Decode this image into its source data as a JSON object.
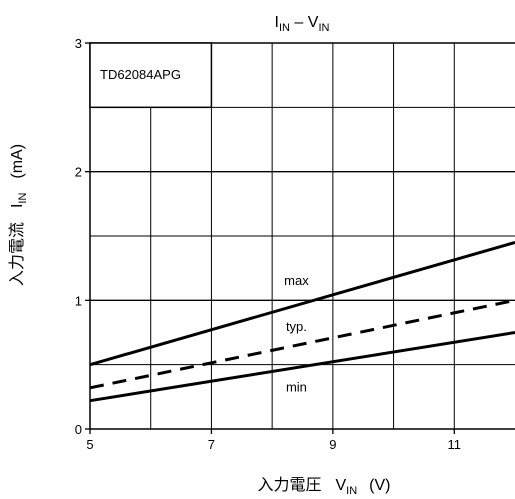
{
  "chart_data": {
    "type": "line",
    "title": {
      "main": "I",
      "main_sub": "IN",
      "sep": " – ",
      "second": "V",
      "second_sub": "IN"
    },
    "xlabel": {
      "jp": "入力電圧",
      "sym": "V",
      "sub": "IN",
      "unit": "(V)"
    },
    "ylabel": {
      "jp": "入力電流",
      "sym": "I",
      "sub": "IN",
      "unit": "(mA)"
    },
    "xlim": [
      5,
      12
    ],
    "ylim": [
      0,
      3
    ],
    "x_ticks": [
      "5",
      "7",
      "9",
      "11"
    ],
    "y_ticks": [
      "0",
      "1",
      "2",
      "3"
    ],
    "grid": true,
    "device_label": "TD62084APG",
    "series": [
      {
        "name": "max",
        "style": "solid",
        "color": "#000000",
        "x": [
          5,
          12
        ],
        "y": [
          0.5,
          1.45
        ]
      },
      {
        "name": "typ.",
        "style": "dashed",
        "color": "#000000",
        "x": [
          5,
          12
        ],
        "y": [
          0.32,
          1.0
        ]
      },
      {
        "name": "min",
        "style": "solid",
        "color": "#000000",
        "x": [
          5,
          12
        ],
        "y": [
          0.22,
          0.75
        ]
      }
    ]
  }
}
